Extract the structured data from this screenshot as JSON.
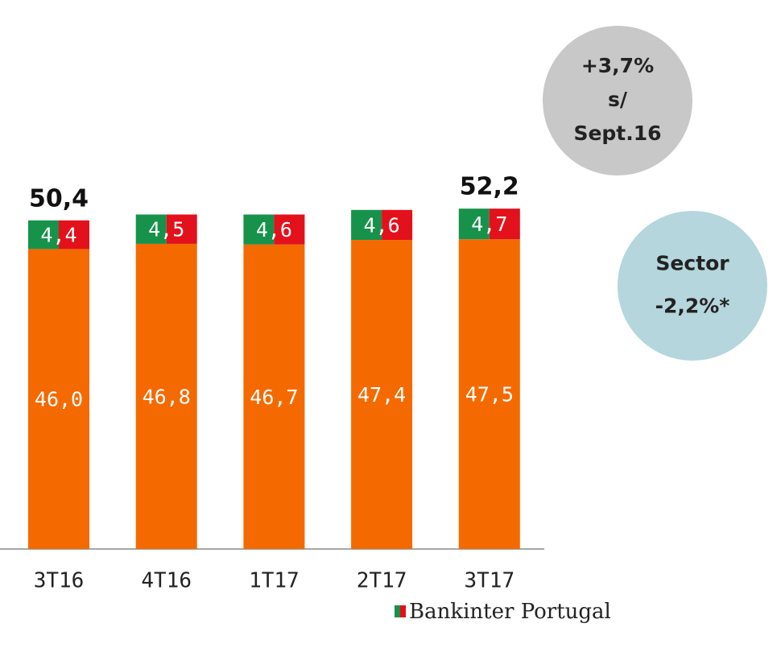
{
  "chart_data": {
    "type": "stacked_bar",
    "categories": [
      "3T16",
      "4T16",
      "1T17",
      "2T17",
      "3T17"
    ],
    "series": [
      {
        "name": null,
        "color": "#f46a00",
        "values": [
          46.0,
          46.8,
          46.7,
          47.4,
          47.5
        ],
        "value_labels": [
          "46,0",
          "46,8",
          "46,7",
          "47,4",
          "47,5"
        ]
      },
      {
        "name": "Bankinter Portugal",
        "color": "#e3111b",
        "color2": "#17924a",
        "values": [
          4.4,
          4.5,
          4.6,
          4.6,
          4.7
        ],
        "value_labels": [
          "4,4",
          "4,5",
          "4,6",
          "4,6",
          "4,7"
        ]
      }
    ],
    "totals": {
      "values": [
        50.4,
        null,
        null,
        null,
        52.2
      ],
      "value_labels": [
        "50,4",
        null,
        null,
        null,
        "52,2"
      ]
    },
    "ylim": [
      0,
      60
    ],
    "bubbles": [
      {
        "lines": [
          "+3,7%",
          "s/",
          "Sept.16"
        ],
        "color": "#c8c8c8"
      },
      {
        "lines": [
          "Sector",
          "-2,2%*"
        ],
        "color": "#b4d6dc"
      }
    ]
  }
}
